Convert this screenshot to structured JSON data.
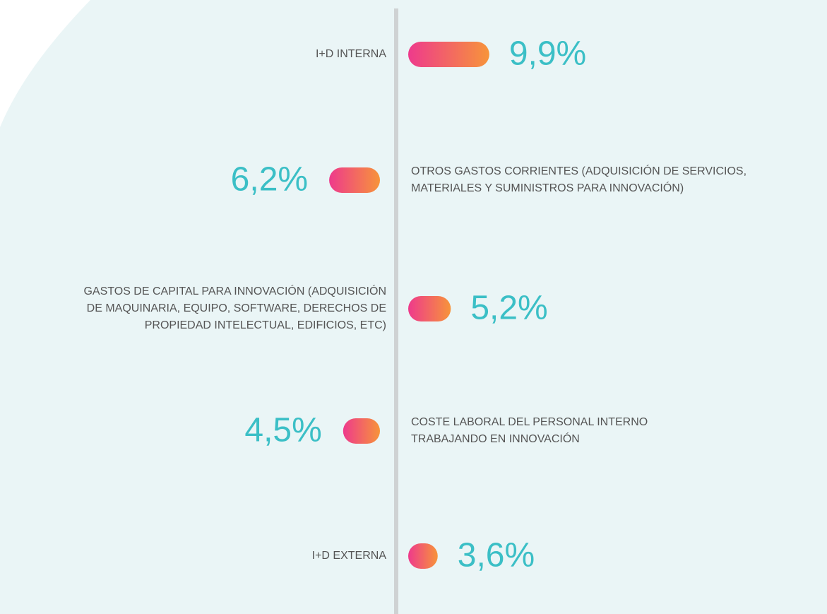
{
  "chart_data": {
    "type": "bar",
    "categories": [
      "I+D INTERNA",
      "OTROS GASTOS CORRIENTES (ADQUISICIÓN DE SERVICIOS,\nMATERIALES Y SUMINISTROS PARA INNOVACIÓN)",
      "GASTOS DE CAPITAL PARA INNOVACIÓN (ADQUISICIÓN\nDE MAQUINARIA, EQUIPO, SOFTWARE, DERECHOS DE\nPROPIEDAD INTELECTUAL, EDIFICIOS, ETC)",
      "COSTE LABORAL DEL PERSONAL INTERNO\nTRABAJANDO EN INNOVACIÓN",
      "I+D EXTERNA"
    ],
    "values": [
      9.9,
      6.2,
      5.2,
      4.5,
      3.6
    ],
    "value_labels": [
      "9,9%",
      "6,2%",
      "5,2%",
      "4,5%",
      "3,6%"
    ],
    "color": [
      "#ee3a8c",
      "#f7943a"
    ]
  }
}
